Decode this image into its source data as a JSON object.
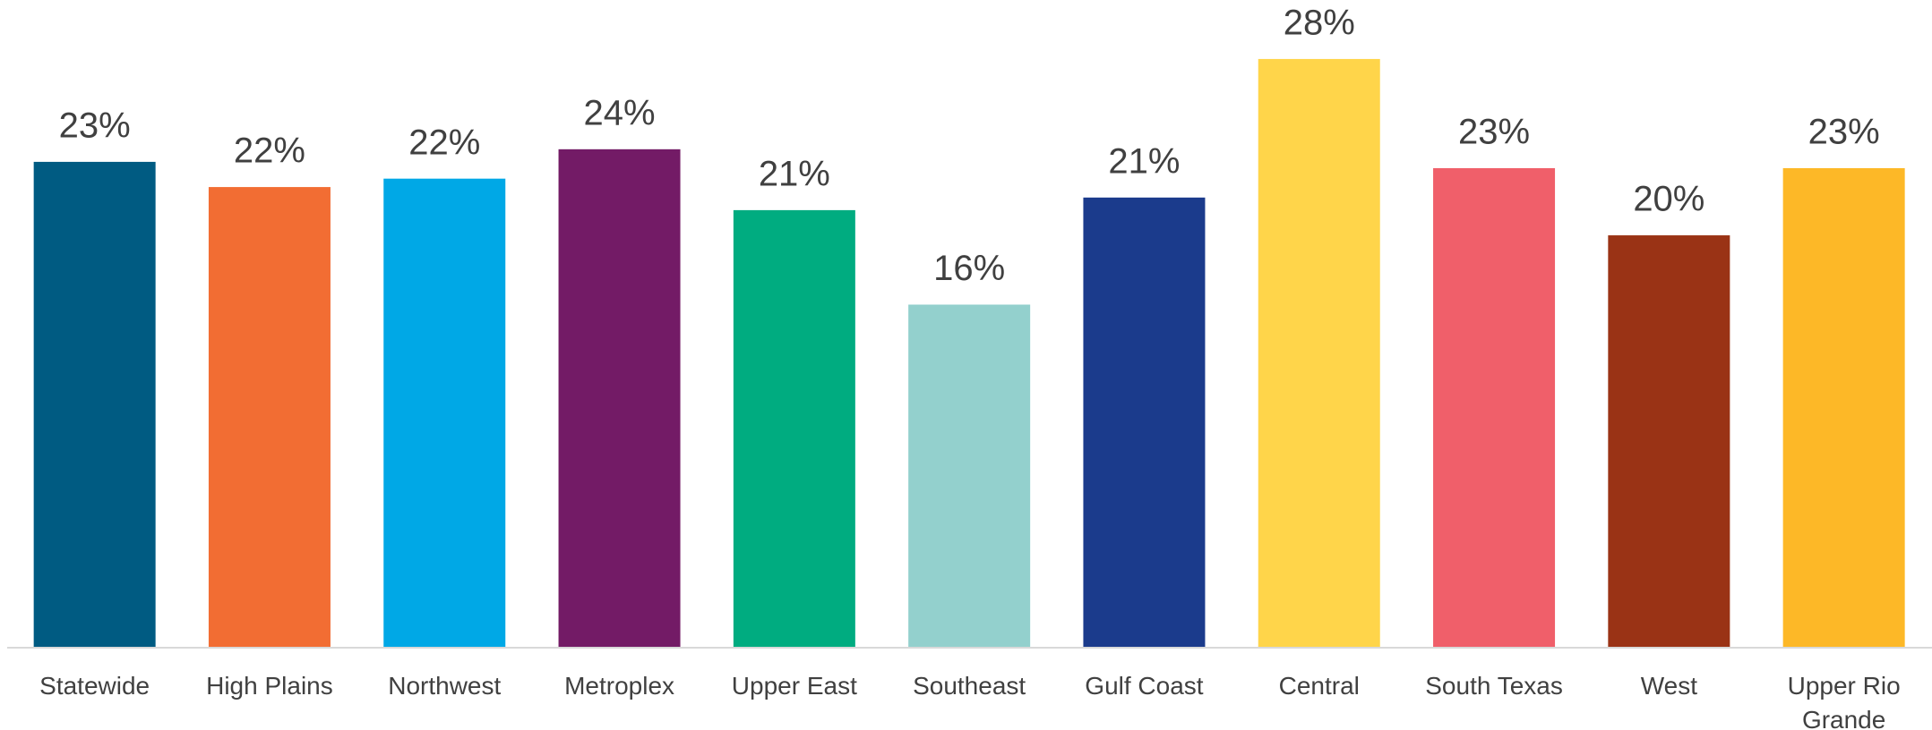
{
  "chart_data": {
    "type": "bar",
    "categories": [
      "Statewide",
      "High Plains",
      "Northwest",
      "Metroplex",
      "Upper East",
      "Southeast",
      "Gulf Coast",
      "Central",
      "South Texas",
      "West",
      "Upper Rio Grande"
    ],
    "values": [
      23.1,
      21.9,
      22.3,
      23.7,
      20.8,
      16.3,
      21.4,
      28,
      22.8,
      19.6,
      22.8
    ],
    "value_labels": [
      "23%",
      "22%",
      "22%",
      "24%",
      "21%",
      "16%",
      "21%",
      "28%",
      "23%",
      "20%",
      "23%"
    ],
    "colors": [
      "#005b82",
      "#f26d33",
      "#00a8e6",
      "#731b66",
      "#00ac80",
      "#93d0cd",
      "#1b3b8c",
      "#ffd54a",
      "#f05f6a",
      "#9a3315",
      "#fdb827"
    ],
    "ylim": [
      0,
      30
    ]
  }
}
